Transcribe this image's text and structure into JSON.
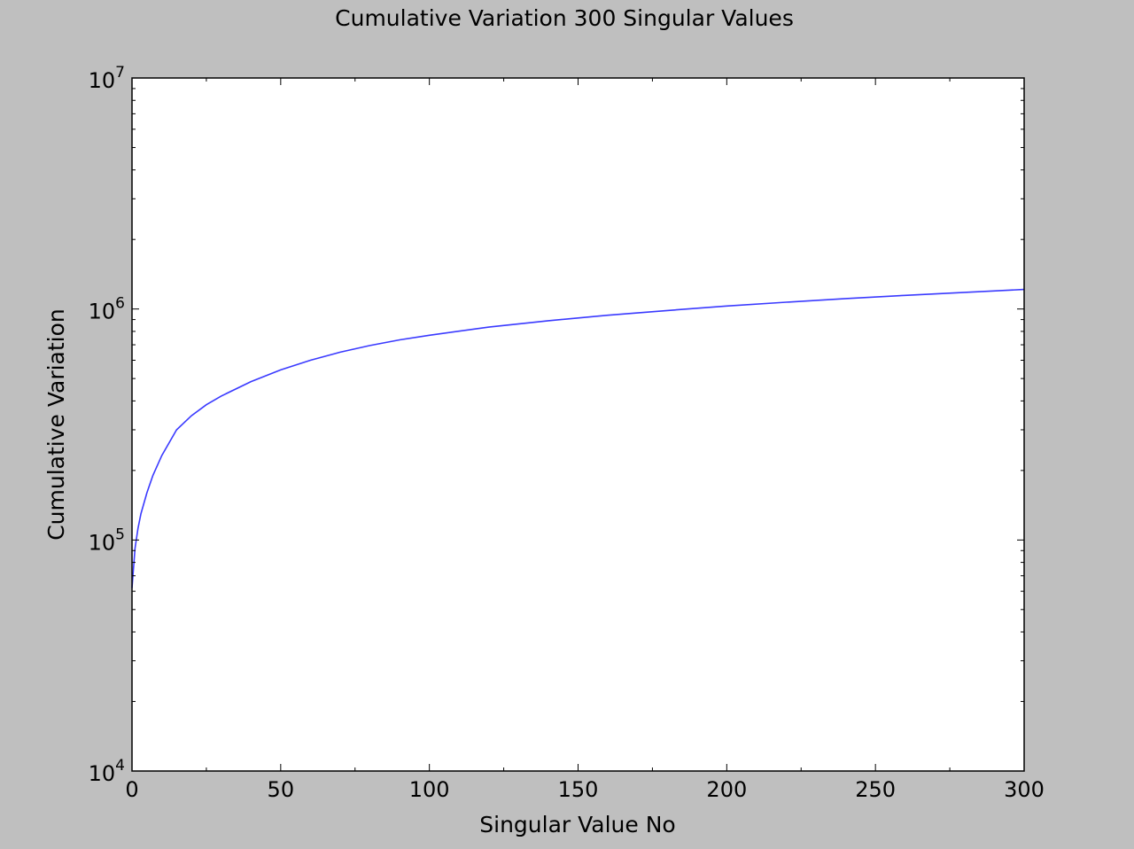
{
  "chart_data": {
    "type": "line",
    "title": "Cumulative Variation 300 Singular Values",
    "xlabel": "Singular Value No",
    "ylabel": "Cumulative Variation",
    "xlim": [
      0,
      300
    ],
    "ylim": [
      10000,
      10000000
    ],
    "y_scale": "log",
    "grid": false,
    "legend": "none",
    "x_ticks": [
      {
        "value": 0,
        "label": "0"
      },
      {
        "value": 50,
        "label": "50"
      },
      {
        "value": 100,
        "label": "100"
      },
      {
        "value": 150,
        "label": "150"
      },
      {
        "value": 200,
        "label": "200"
      },
      {
        "value": 250,
        "label": "250"
      },
      {
        "value": 300,
        "label": "300"
      }
    ],
    "y_ticks": [
      {
        "value": 10000,
        "base": "10",
        "exp": "4"
      },
      {
        "value": 100000,
        "base": "10",
        "exp": "5"
      },
      {
        "value": 1000000,
        "base": "10",
        "exp": "6"
      },
      {
        "value": 10000000,
        "base": "10",
        "exp": "7"
      }
    ],
    "series": [
      {
        "color": "#3a3aff",
        "x": [
          0,
          1,
          2,
          3,
          5,
          7,
          10,
          15,
          20,
          25,
          30,
          40,
          50,
          60,
          70,
          80,
          90,
          100,
          120,
          140,
          160,
          180,
          200,
          220,
          240,
          260,
          280,
          300
        ],
        "y": [
          62000,
          92000,
          112000,
          130000,
          160000,
          190000,
          232000,
          300000,
          345000,
          385000,
          420000,
          485000,
          545000,
          600000,
          650000,
          695000,
          735000,
          770000,
          835000,
          890000,
          940000,
          985000,
          1030000,
          1070000,
          1110000,
          1145000,
          1180000,
          1215000
        ]
      }
    ]
  }
}
